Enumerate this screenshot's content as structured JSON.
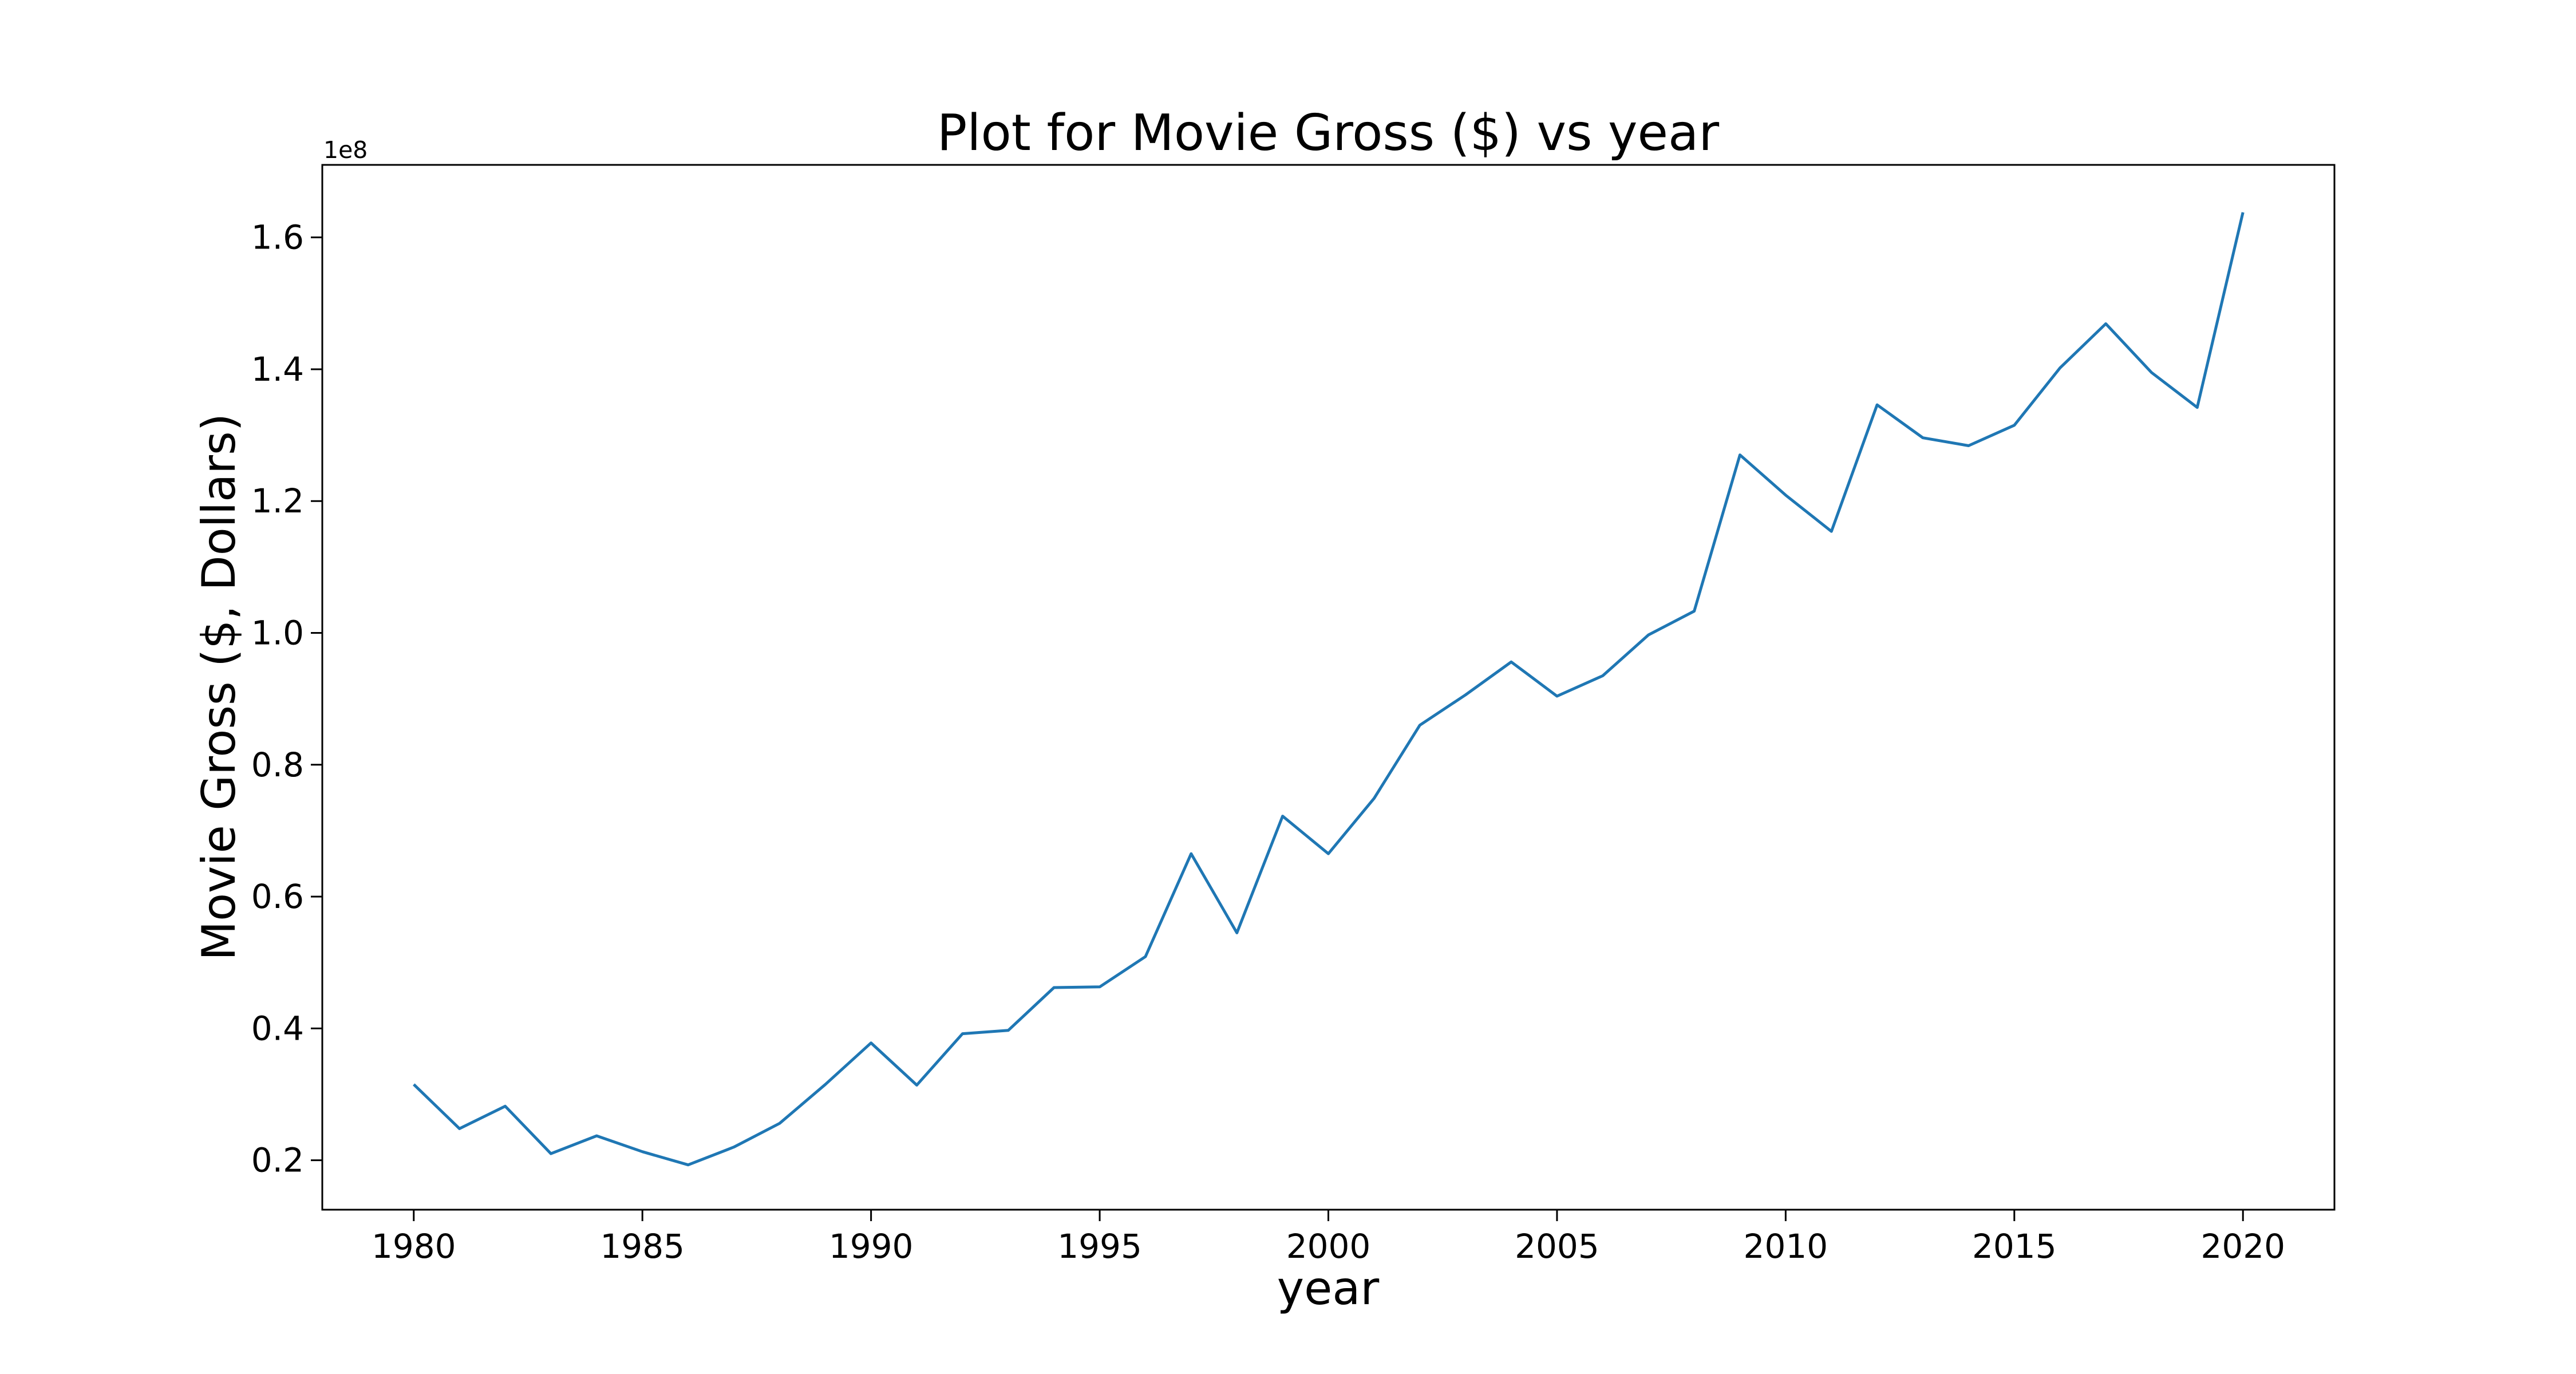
{
  "chart_data": {
    "type": "line",
    "title": "Plot for Movie Gross ($) vs year",
    "xlabel": "year",
    "ylabel": "Movie Gross ($, Dollars)",
    "y_offset_label": "1e8",
    "x": [
      1980,
      1981,
      1982,
      1983,
      1984,
      1985,
      1986,
      1987,
      1988,
      1989,
      1990,
      1991,
      1992,
      1993,
      1994,
      1995,
      1996,
      1997,
      1998,
      1999,
      2000,
      2001,
      2002,
      2003,
      2004,
      2005,
      2006,
      2007,
      2008,
      2009,
      2010,
      2011,
      2012,
      2013,
      2014,
      2015,
      2016,
      2017,
      2018,
      2019,
      2020
    ],
    "series": [
      {
        "color": "#1f77b4",
        "values": [
          31500000,
          24800000,
          28200000,
          21000000,
          23700000,
          21300000,
          19300000,
          22000000,
          25600000,
          31500000,
          37800000,
          31400000,
          39200000,
          39700000,
          46200000,
          46300000,
          50900000,
          66500000,
          54500000,
          72200000,
          66500000,
          74900000,
          86000000,
          90600000,
          95600000,
          90400000,
          93500000,
          99700000,
          103300000,
          127000000,
          120900000,
          115400000,
          134600000,
          129600000,
          128400000,
          131500000,
          140200000,
          146900000,
          139500000,
          134200000,
          163800000
        ]
      }
    ],
    "xlim": [
      1978,
      2022
    ],
    "ylim": [
      12500000,
      171000000
    ],
    "xticks": [
      1980,
      1985,
      1990,
      1995,
      2000,
      2005,
      2010,
      2015,
      2020
    ],
    "yticks": [
      20000000,
      40000000,
      60000000,
      80000000,
      100000000,
      120000000,
      140000000,
      160000000
    ],
    "ytick_labels": [
      "0.2",
      "0.4",
      "0.6",
      "0.8",
      "1.0",
      "1.2",
      "1.4",
      "1.6"
    ],
    "grid": false,
    "legend": "none"
  }
}
